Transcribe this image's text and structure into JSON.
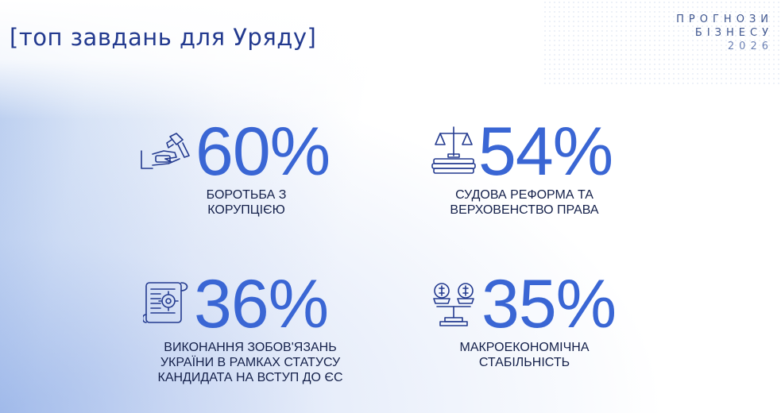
{
  "title": "[топ завдань для Уряду]",
  "brand": {
    "line1": "ПРОГНОЗИ",
    "line2": "БІЗНЕСУ",
    "line3": "2026"
  },
  "stats": [
    {
      "value": "60%",
      "label": "БОРОТЬБА З\nКОРУПЦІЄЮ",
      "icon": "handcuffs-hand-icon"
    },
    {
      "value": "54%",
      "label": "СУДОВА РЕФОРМА ТА\nВЕРХОВЕНСТВО ПРАВА",
      "icon": "scales-books-icon"
    },
    {
      "value": "36%",
      "label": "ВИКОНАННЯ ЗОБОВ'ЯЗАНЬ\nУКРАЇНИ В РАМКАХ СТАТУСУ\nКАНДИДАТА НА ВСТУП ДО ЄС",
      "icon": "scroll-gear-icon"
    },
    {
      "value": "35%",
      "label": "МАКРОЕКОНОМІЧНА\nСТАБІЛЬНІСТЬ",
      "icon": "balance-coins-icon"
    }
  ],
  "colors": {
    "accent": "#3a66d4",
    "navy": "#233a8f",
    "text": "#14204a"
  }
}
